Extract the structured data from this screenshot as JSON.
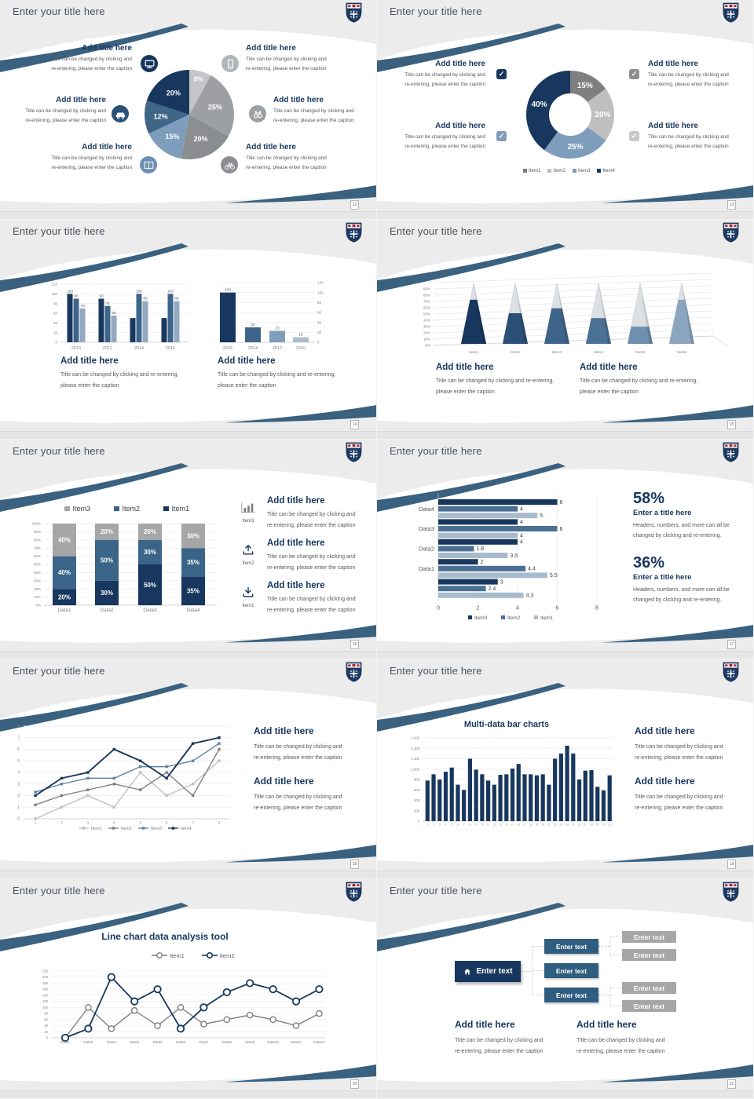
{
  "deck": {
    "title_text": "Enter your title here"
  },
  "common": {
    "add_title": "Add title here",
    "caption_a": [
      "Title can be changed by clicking and",
      "re-entering, please enter the caption"
    ],
    "caption_b": [
      "Title can be changed by clicking and re-entering,",
      "please enter the caption"
    ],
    "check": "✓",
    "colors": {
      "navy": "#17375E",
      "steel": "#3E6489",
      "light_blue": "#7E9DBD",
      "stripe": "#3A617F",
      "gray_dark": "#7F7F7F",
      "gray_mid": "#A6A6A6",
      "gray_light": "#BFBFBF"
    }
  },
  "slides": [
    {
      "page": "12",
      "icons": [
        "monitor-icon",
        "mobile-icon",
        "car-icon",
        "binoculars-icon",
        "book-icon",
        "bicycle-icon"
      ],
      "icon_colors": [
        "#17375E",
        "#B3B6B9",
        "#2A5178",
        "#9DA0A3",
        "#6D8FB3",
        "#8B8E91"
      ]
    },
    {
      "page": "13",
      "legend": [
        "Item1",
        "Item2",
        "Item3",
        "Item4"
      ],
      "legend_colors": [
        "#7F7F7F",
        "#BFBFBF",
        "#7E9DBD",
        "#17375E"
      ],
      "check_colors": [
        "#17375E",
        "#8B8E91",
        "#7E9DBD",
        "#C6C8CA"
      ]
    },
    {
      "page": "14"
    },
    {
      "page": "15"
    },
    {
      "page": "16",
      "legend": [
        "Item3",
        "Item2",
        "Item1"
      ],
      "legend_colors": [
        "#A6A6A6",
        "#3A6589",
        "#17375E"
      ],
      "features": [
        {
          "label": "Item3"
        },
        {
          "label": "Item2"
        },
        {
          "label": "Item1"
        }
      ]
    },
    {
      "page": "17",
      "stats": [
        {
          "pct": "58%",
          "title": "Enter a title here",
          "cap": [
            "Headers, numbers, and more can all be",
            "changed by clicking and re-entering."
          ]
        },
        {
          "pct": "36%",
          "title": "Enter a title here",
          "cap": [
            "Headers, numbers, and more can all be",
            "changed by clicking and re-entering."
          ]
        }
      ]
    },
    {
      "page": "18"
    },
    {
      "page": "19",
      "chart_title": "Multi-data bar charts"
    },
    {
      "page": "20",
      "chart_title": "Line chart data analysis tool",
      "legend": [
        "Item1",
        "Item2"
      ]
    },
    {
      "page": "21",
      "box_label": "Enter text"
    }
  ],
  "chart_data": [
    {
      "id": "pie-12",
      "type": "pie",
      "title": "",
      "slices": [
        {
          "label": "8%",
          "value": 8,
          "color": "#C3C5C7"
        },
        {
          "label": "25%",
          "value": 25,
          "color": "#9DA0A3"
        },
        {
          "label": "20%",
          "value": 20,
          "color": "#8B8E91"
        },
        {
          "label": "15%",
          "value": 15,
          "color": "#7E9DBD"
        },
        {
          "label": "12%",
          "value": 12,
          "color": "#3F6587"
        },
        {
          "label": "20%",
          "value": 20,
          "color": "#17375E"
        }
      ]
    },
    {
      "id": "donut-13",
      "type": "pie",
      "donut": true,
      "title": "",
      "legend": [
        "Item1",
        "Item2",
        "Item3",
        "Item4"
      ],
      "slices": [
        {
          "label": "15%",
          "value": 15,
          "color": "#7F7F7F"
        },
        {
          "label": "20%",
          "value": 20,
          "color": "#BFBFBF"
        },
        {
          "label": "25%",
          "value": 25,
          "color": "#7E9DBD"
        },
        {
          "label": "40%",
          "value": 40,
          "color": "#17375E"
        }
      ]
    },
    {
      "id": "col-14L",
      "type": "bar",
      "categories": [
        "2010",
        "2012",
        "2014",
        "2016"
      ],
      "series": [
        {
          "name": "s1",
          "color": "#17375E",
          "values": [
            100,
            90,
            50,
            50
          ]
        },
        {
          "name": "s2",
          "color": "#3E6489",
          "values": [
            90,
            75,
            100,
            100
          ]
        },
        {
          "name": "s3",
          "color": "#93A9C2",
          "values": [
            70,
            55,
            85,
            85
          ]
        }
      ],
      "data_labels": [
        [
          100,
          90,
          70
        ],
        [
          90,
          75,
          55
        ],
        [
          null,
          100,
          85
        ],
        [
          null,
          100,
          85
        ]
      ],
      "ylim": [
        0,
        120
      ],
      "ytick": 20
    },
    {
      "id": "col-14R",
      "type": "bar",
      "categories": [
        "2016",
        "2014",
        "2012",
        "2010"
      ],
      "values": [
        100,
        30,
        23,
        10
      ],
      "colors": [
        "#17375E",
        "#3E6489",
        "#7E9DBD",
        "#A9BCCB"
      ],
      "ylim": [
        0,
        120
      ],
      "ytick": 20,
      "axis_side": "right"
    },
    {
      "id": "pyramid-15",
      "type": "bar",
      "subtype": "3d-pyramid",
      "categories": [
        "Item1",
        "Item2",
        "Item3",
        "Item4",
        "Item5",
        "Item6"
      ],
      "values": [
        72,
        50,
        58,
        42,
        28,
        72
      ],
      "colors": [
        "#17375E",
        "#2B5078",
        "#3E6489",
        "#4A7094",
        "#6E8FAE",
        "#8CA5BF"
      ],
      "rest_color": "#DCDFE3",
      "ylim": [
        0,
        100
      ],
      "ytick": 10,
      "ytick_labels": [
        "0%",
        "10%",
        "20%",
        "30%",
        "40%",
        "50%",
        "60%",
        "70%",
        "80%",
        "90%"
      ]
    },
    {
      "id": "stacked-16",
      "type": "bar",
      "stacked": true,
      "categories": [
        "Data1",
        "Data2",
        "Data3",
        "Data4"
      ],
      "series": [
        {
          "name": "Item1",
          "color": "#17375E",
          "values": [
            20,
            30,
            50,
            35
          ]
        },
        {
          "name": "Item2",
          "color": "#3A6589",
          "values": [
            40,
            50,
            30,
            35
          ]
        },
        {
          "name": "Item3",
          "color": "#A6A6A6",
          "values": [
            40,
            20,
            20,
            30
          ]
        }
      ],
      "ylim": [
        0,
        100
      ],
      "ytick": 10,
      "legend_order": [
        "Item3",
        "Item2",
        "Item1"
      ]
    },
    {
      "id": "hbar-17",
      "type": "bar",
      "orientation": "horizontal",
      "categories": [
        "Data4",
        "Data3",
        "Data2",
        "Data1",
        ""
      ],
      "series": [
        {
          "name": "Item3",
          "color": "#17375E",
          "values": [
            6,
            4,
            4,
            2,
            3
          ]
        },
        {
          "name": "Item2",
          "color": "#4A7094",
          "values": [
            4,
            6,
            1.8,
            4.4,
            2.4
          ]
        },
        {
          "name": "Item1",
          "color": "#A9BCCB",
          "values": [
            5,
            4,
            3.5,
            5.5,
            4.3
          ]
        }
      ],
      "xlim": [
        0,
        8
      ],
      "xtick": 2,
      "legend": [
        "Item3",
        "Item2",
        "Item1"
      ],
      "legend_colors": [
        "#17375E",
        "#4A7094",
        "#A9BCCB"
      ]
    },
    {
      "id": "line-18",
      "type": "line",
      "x": [
        1,
        2,
        3,
        4,
        5,
        6,
        7,
        8
      ],
      "series": [
        {
          "name": "Item1",
          "color": "#C0C0C0",
          "values": [
            0,
            1,
            2,
            1,
            4,
            2,
            3,
            5
          ]
        },
        {
          "name": "Item2",
          "color": "#808080",
          "values": [
            1.2,
            2,
            2.5,
            3,
            2.5,
            4,
            2,
            6
          ]
        },
        {
          "name": "Item3",
          "color": "#5F83A6",
          "values": [
            2.3,
            3,
            3.5,
            3.5,
            4.5,
            4.5,
            5,
            6.5
          ]
        },
        {
          "name": "Item4",
          "color": "#17375E",
          "values": [
            2,
            3.5,
            4,
            6,
            5,
            3.5,
            6.5,
            7
          ]
        }
      ],
      "ylim": [
        0,
        8
      ],
      "ytick": 1,
      "legend_position": "bottom"
    },
    {
      "id": "col-19",
      "type": "bar",
      "title": "Multi-data bar charts",
      "color": "#17375E",
      "categories": [
        "1",
        "2",
        "3",
        "4",
        "5",
        "6",
        "7",
        "8",
        "9",
        "10",
        "11",
        "12",
        "13",
        "14",
        "15",
        "16",
        "17",
        "18",
        "19",
        "20",
        "21",
        "22",
        "23",
        "24",
        "25",
        "26",
        "27",
        "28",
        "29",
        "30",
        "31"
      ],
      "values": [
        780,
        900,
        800,
        950,
        1030,
        700,
        600,
        1200,
        990,
        900,
        780,
        700,
        890,
        900,
        1010,
        1100,
        900,
        900,
        880,
        900,
        700,
        1200,
        1300,
        1450,
        1300,
        800,
        970,
        980,
        660,
        590,
        880
      ],
      "ylim": [
        0,
        1600
      ],
      "ytick": 200,
      "ytick_labels": [
        "0",
        "200",
        "400",
        "600",
        "800",
        "1,000",
        "1,200",
        "1,400",
        "1,600"
      ]
    },
    {
      "id": "line-20",
      "type": "line",
      "title": "Line chart data analysis tool",
      "categories": [
        "Data1",
        "Data2",
        "Data3",
        "Data4",
        "Data5",
        "Data6",
        "Data7",
        "Data8",
        "Data9",
        "Data10",
        "Data11",
        "Data12"
      ],
      "series": [
        {
          "name": "Item1",
          "color": "#7F7F7F",
          "values": [
            0,
            100,
            30,
            90,
            40,
            100,
            45,
            60,
            75,
            60,
            40,
            80
          ]
        },
        {
          "name": "Item2",
          "color": "#17375E",
          "values": [
            0,
            30,
            200,
            120,
            160,
            30,
            100,
            150,
            180,
            160,
            120,
            160
          ]
        }
      ],
      "ylim": [
        0,
        220
      ],
      "ytick": 20,
      "legend_position": "top",
      "marker": "open-circle"
    }
  ]
}
